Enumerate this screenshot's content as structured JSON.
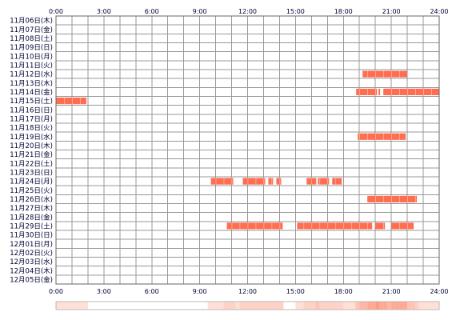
{
  "chart_data": {
    "type": "timeline",
    "x_ticks": [
      "0:00",
      "3:00",
      "6:00",
      "9:00",
      "12:00",
      "15:00",
      "18:00",
      "21:00",
      "24:00"
    ],
    "x_range_hours": [
      0,
      24
    ],
    "grid": true,
    "bar_color": "#FF6E50",
    "summary_color": "#FF8A6A",
    "rows": [
      {
        "label": "11月06日(木)",
        "segments": []
      },
      {
        "label": "11月07日(金)",
        "segments": []
      },
      {
        "label": "11月08日(土)",
        "segments": []
      },
      {
        "label": "11月09日(日)",
        "segments": []
      },
      {
        "label": "11月10日(月)",
        "segments": []
      },
      {
        "label": "11月11日(火)",
        "segments": []
      },
      {
        "label": "11月12日(水)",
        "segments": [
          [
            19.2,
            22.0
          ]
        ]
      },
      {
        "label": "11月13日(木)",
        "segments": []
      },
      {
        "label": "11月14日(金)",
        "segments": [
          [
            18.8,
            20.1
          ],
          [
            20.2,
            20.3
          ],
          [
            20.5,
            24.0
          ]
        ]
      },
      {
        "label": "11月15日(土)",
        "segments": [
          [
            0.0,
            1.9
          ]
        ]
      },
      {
        "label": "11月16日(日)",
        "segments": []
      },
      {
        "label": "11月17日(月)",
        "segments": []
      },
      {
        "label": "11月18日(火)",
        "segments": []
      },
      {
        "label": "11月19日(水)",
        "segments": [
          [
            18.9,
            21.9
          ]
        ]
      },
      {
        "label": "11月20日(木)",
        "segments": []
      },
      {
        "label": "11月21日(金)",
        "segments": []
      },
      {
        "label": "11月22日(土)",
        "segments": []
      },
      {
        "label": "11月23日(日)",
        "segments": []
      },
      {
        "label": "11月24日(月)",
        "segments": [
          [
            9.7,
            11.1
          ],
          [
            11.7,
            13.1
          ],
          [
            13.3,
            13.6
          ],
          [
            13.8,
            14.1
          ],
          [
            15.7,
            16.3
          ],
          [
            16.4,
            17.1
          ],
          [
            17.3,
            17.9
          ]
        ]
      },
      {
        "label": "11月25日(火)",
        "segments": []
      },
      {
        "label": "11月26日(水)",
        "segments": [
          [
            19.5,
            22.6
          ]
        ]
      },
      {
        "label": "11月27日(木)",
        "segments": []
      },
      {
        "label": "11月28日(金)",
        "segments": []
      },
      {
        "label": "11月29日(土)",
        "segments": [
          [
            10.7,
            14.2
          ],
          [
            15.1,
            19.8
          ],
          [
            20.0,
            20.6
          ],
          [
            21.0,
            22.4
          ]
        ]
      },
      {
        "label": "11月30日(日)",
        "segments": []
      },
      {
        "label": "12月01日(月)",
        "segments": []
      },
      {
        "label": "12月02日(火)",
        "segments": []
      },
      {
        "label": "12月03日(水)",
        "segments": []
      },
      {
        "label": "12月04日(木)",
        "segments": []
      },
      {
        "label": "12月05日(金)",
        "segments": []
      }
    ]
  }
}
